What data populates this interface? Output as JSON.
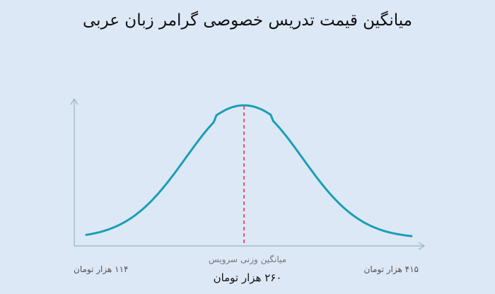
{
  "title": "میانگین قیمت تدریس خصوصی گرامر زبان عربی",
  "colors": {
    "background": "#dce8f6",
    "curve": "#1a9fb5",
    "marker": "#f0406a",
    "axis": "#9ab4c4"
  },
  "chart_data": {
    "type": "area",
    "distribution": "normal-curve",
    "x_range": [
      114,
      415
    ],
    "mean": 260,
    "min_label": "۱۱۴ هزار تومان",
    "max_label": "۴۱۵ هزار تومان",
    "mean_caption": "میانگین وزنی سرویس",
    "mean_label": "۲۶۰ هزار تومان",
    "grid": false
  }
}
